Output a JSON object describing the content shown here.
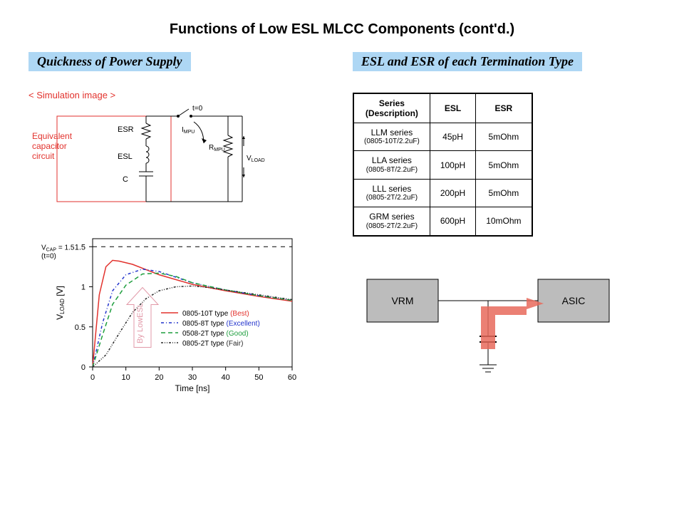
{
  "title": "Functions of Low ESL MLCC Components (cont'd.)",
  "left": {
    "banner": "Quickness of Power Supply",
    "sim_heading": "< Simulation image >",
    "circuit": {
      "equiv_label_line1": "Equivalent",
      "equiv_label_line2": "capacitor",
      "equiv_label_line3": "circuit",
      "equiv_color": "#e2322d",
      "esr": "ESR",
      "esl": "ESL",
      "c": "C",
      "t0": "t=0",
      "impu": "I",
      "impu_sub": "MPU",
      "rmpu": "R",
      "rmpu_sub": "MPU",
      "vload": "V",
      "vload_sub": "LOAD"
    },
    "chart": {
      "xlabel": "Time [ns]",
      "ylabel": "V",
      "ylabel_sub": "LOAD",
      "ylabel_unit": "[V]",
      "vcap_line1": "V",
      "vcap_sub": "CAP",
      "vcap_eq": "= 1.5",
      "vcap_line2": "(t=0)",
      "xlim": [
        0,
        60
      ],
      "ylim": [
        0,
        1.6
      ],
      "xticks": [
        0,
        10,
        20,
        30,
        40,
        50,
        60
      ],
      "yticks": [
        0,
        0.5,
        1,
        1.5
      ],
      "hline": 1.5,
      "callout": "By LowESL",
      "callout_color": "#e299a8",
      "legend": [
        {
          "label": "0805-10T type",
          "rating": "(Best)",
          "color": "#e2322d",
          "dash": "none"
        },
        {
          "label": "0805-8T  type",
          "rating": "(Excellent)",
          "color": "#2233cc",
          "dash": "4 3 1 3"
        },
        {
          "label": "0508-2T  type",
          "rating": "(Good)",
          "color": "#1e9e3e",
          "dash": "6 4"
        },
        {
          "label": "0805-2T  type",
          "rating": "(Fair)",
          "color": "#2b2b2b",
          "dash": "3 2 1 2 1 2"
        }
      ],
      "series": {
        "best": [
          [
            0,
            0
          ],
          [
            2,
            0.9
          ],
          [
            4,
            1.25
          ],
          [
            6,
            1.33
          ],
          [
            8,
            1.32
          ],
          [
            12,
            1.28
          ],
          [
            20,
            1.15
          ],
          [
            30,
            1.03
          ],
          [
            40,
            0.95
          ],
          [
            50,
            0.88
          ],
          [
            60,
            0.82
          ]
        ],
        "excellent": [
          [
            0,
            0
          ],
          [
            3,
            0.55
          ],
          [
            6,
            0.95
          ],
          [
            10,
            1.15
          ],
          [
            15,
            1.22
          ],
          [
            20,
            1.19
          ],
          [
            30,
            1.05
          ],
          [
            40,
            0.96
          ],
          [
            50,
            0.89
          ],
          [
            60,
            0.83
          ]
        ],
        "good": [
          [
            0,
            0
          ],
          [
            3,
            0.4
          ],
          [
            6,
            0.78
          ],
          [
            10,
            1.02
          ],
          [
            15,
            1.16
          ],
          [
            20,
            1.17
          ],
          [
            25,
            1.13
          ],
          [
            30,
            1.05
          ],
          [
            40,
            0.96
          ],
          [
            50,
            0.89
          ],
          [
            60,
            0.83
          ]
        ],
        "fair": [
          [
            0,
            0
          ],
          [
            4,
            0.15
          ],
          [
            8,
            0.42
          ],
          [
            12,
            0.68
          ],
          [
            16,
            0.85
          ],
          [
            20,
            0.95
          ],
          [
            25,
            1.0
          ],
          [
            30,
            1.01
          ],
          [
            35,
            0.99
          ],
          [
            40,
            0.96
          ],
          [
            50,
            0.9
          ],
          [
            60,
            0.84
          ]
        ]
      },
      "plot_bg": "#ffffff",
      "axis_color": "#000000",
      "border_color": "#000000"
    }
  },
  "right": {
    "banner": "ESL and ESR of each Termination Type",
    "table": {
      "headers": [
        "Series\n(Description)",
        "ESL",
        "ESR"
      ],
      "rows": [
        {
          "name": "LLM series",
          "desc": "(0805-10T/2.2uF)",
          "esl": "45pH",
          "esr": "5mOhm"
        },
        {
          "name": "LLA series",
          "desc": "(0805-8T/2.2uF)",
          "esl": "100pH",
          "esr": "5mOhm"
        },
        {
          "name": "LLL series",
          "desc": "(0805-2T/2.2uF)",
          "esl": "200pH",
          "esr": "5mOhm"
        },
        {
          "name": "GRM series",
          "desc": "(0805-2T/2.2uF)",
          "esl": "600pH",
          "esr": "10mOhm"
        }
      ]
    },
    "blockdiag": {
      "left_box": "VRM",
      "right_box": "ASIC",
      "box_fill": "#bcbcbc",
      "arrow_color": "#e86a5c"
    }
  }
}
